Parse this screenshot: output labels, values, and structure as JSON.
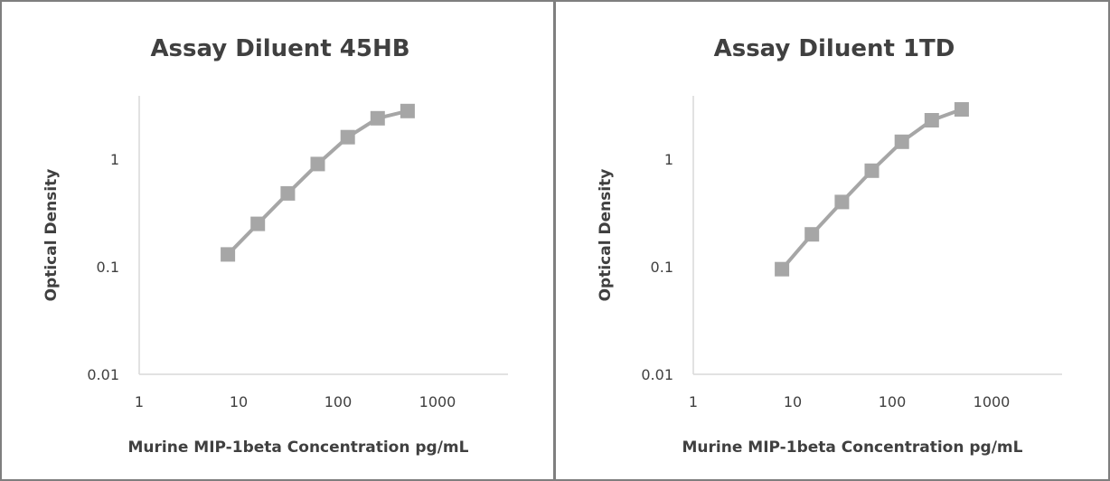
{
  "chart_data": [
    {
      "type": "line",
      "title": "Assay Diluent 45HB",
      "xlabel": "Murine MIP-1beta Concentration pg/mL",
      "ylabel": "Optical Density",
      "x_scale": "log",
      "y_scale": "log",
      "xlim": [
        1,
        1000
      ],
      "ylim": [
        0.01,
        4
      ],
      "xticks": [
        "1",
        "10",
        "100",
        "1000"
      ],
      "yticks": [
        "0.01",
        "0.1",
        "1"
      ],
      "grid": false,
      "legend": "none",
      "color": "#a6a6a6",
      "series": [
        {
          "x": [
            7.8,
            15.6,
            31.25,
            62.5,
            125,
            250,
            500
          ],
          "y": [
            0.13,
            0.25,
            0.48,
            0.9,
            1.6,
            2.4,
            2.8
          ]
        }
      ]
    },
    {
      "type": "line",
      "title": "Assay Diluent 1TD",
      "xlabel": "Murine MIP-1beta Concentration pg/mL",
      "ylabel": "Optical Density",
      "x_scale": "log",
      "y_scale": "log",
      "xlim": [
        1,
        1000
      ],
      "ylim": [
        0.01,
        4
      ],
      "xticks": [
        "1",
        "10",
        "100",
        "1000"
      ],
      "yticks": [
        "0.01",
        "0.1",
        "1"
      ],
      "grid": false,
      "legend": "none",
      "color": "#a6a6a6",
      "series": [
        {
          "x": [
            7.8,
            15.6,
            31.25,
            62.5,
            125,
            250,
            500
          ],
          "y": [
            0.095,
            0.2,
            0.4,
            0.78,
            1.45,
            2.3,
            2.9
          ]
        }
      ]
    }
  ]
}
